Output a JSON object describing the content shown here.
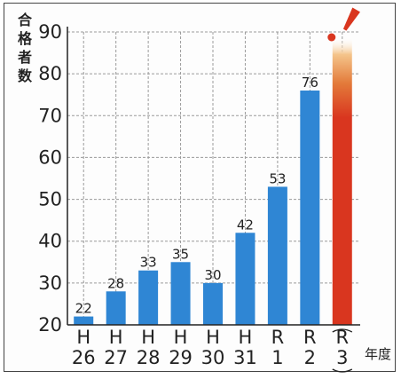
{
  "chart_data": {
    "type": "bar",
    "ylabel": "合格者数",
    "xlabel": "年度",
    "ylim": [
      20,
      90
    ],
    "yticks": [
      20,
      30,
      40,
      50,
      60,
      70,
      80,
      90
    ],
    "grid": true,
    "categories": [
      {
        "top": "H",
        "bottom": "26"
      },
      {
        "top": "H",
        "bottom": "27"
      },
      {
        "top": "H",
        "bottom": "28"
      },
      {
        "top": "H",
        "bottom": "29"
      },
      {
        "top": "H",
        "bottom": "30"
      },
      {
        "top": "H",
        "bottom": "31"
      },
      {
        "top": "R",
        "bottom": "1"
      },
      {
        "top": "R",
        "bottom": "2"
      },
      {
        "top": "R",
        "bottom": "3",
        "bracketed": true
      }
    ],
    "values": [
      22,
      28,
      33,
      35,
      30,
      42,
      53,
      76,
      null
    ],
    "value_labels": [
      "22",
      "28",
      "33",
      "35",
      "30",
      "42",
      "53",
      "76",
      ""
    ],
    "highlight_last": {
      "exclamation": "!",
      "reaches_top": true
    },
    "colors": {
      "bar": "#2f86d4",
      "highlight": "#d9361f",
      "highlight_fade": "#f4c48a",
      "grid": "#9a9a9a"
    }
  }
}
